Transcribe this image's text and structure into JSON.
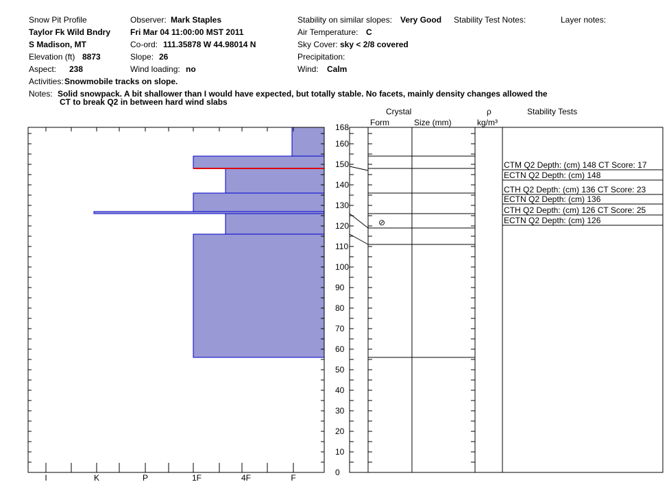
{
  "header": {
    "title": "Snow Pit Profile",
    "location": "Taylor Fk Wild Bndry",
    "region": "S Madison, MT",
    "elevation_label": "Elevation (ft)",
    "elevation_value": "8873",
    "aspect_label": "Aspect:",
    "aspect_value": "238",
    "observer_label": "Observer:",
    "observer_value": "Mark Staples",
    "datetime": "Fri Mar 04 11:00:00 MST 2011",
    "coord_label": "Co-ord:",
    "coord_value": "111.35878 W 44.98014 N",
    "slope_label": "Slope:",
    "slope_value": "26",
    "wind_loading_label": "Wind loading:",
    "wind_loading_value": "no",
    "stability_label": "Stability on similar slopes:",
    "stability_value": "Very Good",
    "air_temp_label": "Air Temperature:",
    "air_temp_value": "C",
    "sky_label": "Sky Cover:",
    "sky_value": "sky < 2/8 covered",
    "precip_label": "Precipitation:",
    "wind_label": "Wind:",
    "wind_value": "Calm",
    "stability_notes_label": "Stability Test Notes:",
    "layer_notes_label": "Layer notes:",
    "activities_label": "Activities:",
    "activities_value": "Snowmobile tracks on slope.",
    "notes_label": "Notes:",
    "notes_line1": "Solid snowpack.  A bit shallower than I would have expected, but totally stable.  No facets, mainly density changes allowed the",
    "notes_line2": "CT to break Q2 in between hard wind slabs"
  },
  "columns": {
    "crystal": "Crystal",
    "form": "Form",
    "size": "Size (mm)",
    "rho": "ρ",
    "density_unit": "kg/m³",
    "stability_tests": "Stability Tests"
  },
  "colors": {
    "hardness_fill": "#9999d6",
    "hardness_stroke": "#0000cc",
    "weak_layer": "#dd0000"
  },
  "chart_data": {
    "type": "bar",
    "orientation": "horizontal",
    "y_axis": {
      "min": 0,
      "max": 168,
      "ticks": [
        0,
        10,
        20,
        30,
        40,
        50,
        60,
        70,
        80,
        90,
        100,
        110,
        120,
        130,
        140,
        150,
        160,
        168
      ]
    },
    "x_axis": {
      "categories": [
        "I",
        "K",
        "P",
        "1F",
        "4F",
        "F"
      ]
    },
    "hardness_layers": [
      {
        "bottom": 56,
        "top": 116,
        "hardness": "1F"
      },
      {
        "bottom": 116,
        "top": 126,
        "hardness": "4F-"
      },
      {
        "bottom": 126,
        "top": 127,
        "hardness": "K-"
      },
      {
        "bottom": 127,
        "top": 136,
        "hardness": "1F"
      },
      {
        "bottom": 136,
        "top": 148,
        "hardness": "4F+"
      },
      {
        "bottom": 148,
        "top": 154,
        "hardness": "1F"
      },
      {
        "bottom": 154,
        "top": 168,
        "hardness": "F+"
      }
    ],
    "weak_layer_depth": 148,
    "layer_boundaries": [
      56,
      111,
      119,
      126,
      136,
      148,
      154
    ],
    "crystal_symbols": [
      {
        "depth": 122,
        "symbol": "⊘"
      }
    ],
    "stability_tests": [
      {
        "text": "CTM Q2 Depth: (cm) 148 CT Score: 17"
      },
      {
        "text": "ECTN Q2 Depth: (cm) 148"
      },
      {
        "text": "CTH Q2 Depth: (cm) 136 CT Score: 23"
      },
      {
        "text": "ECTN Q2 Depth: (cm) 136"
      },
      {
        "text": "CTH Q2 Depth: (cm) 126 CT Score: 25"
      },
      {
        "text": "ECTN Q2 Depth: (cm) 126"
      }
    ]
  }
}
